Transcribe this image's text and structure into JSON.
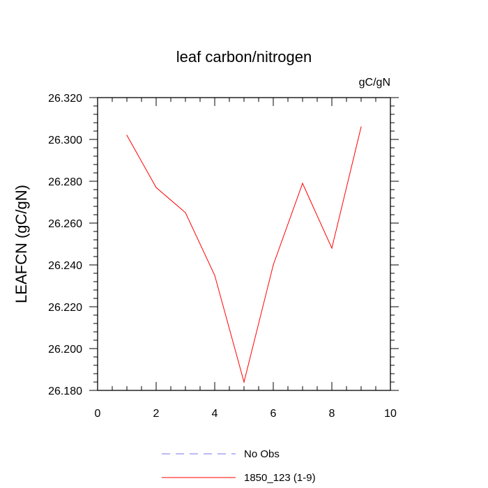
{
  "chart_data": {
    "type": "line",
    "title": "leaf carbon/nitrogen",
    "units": "gC/gN",
    "ylabel": "LEAFCN  (gC/gN)",
    "xlabel": "",
    "xlim": [
      0,
      10
    ],
    "ylim": [
      26.18,
      26.32
    ],
    "xticks": [
      "0",
      "2",
      "4",
      "6",
      "8",
      "10"
    ],
    "yticks": [
      "26.180",
      "26.200",
      "26.220",
      "26.240",
      "26.260",
      "26.280",
      "26.300",
      "26.320"
    ],
    "grid": false,
    "legend_position": "bottom",
    "series": [
      {
        "name": "No Obs",
        "color": "#7777ee",
        "style": "dashed",
        "x": [],
        "y": []
      },
      {
        "name": "1850_123 (1-9)",
        "color": "#ff0000",
        "style": "solid",
        "x": [
          1,
          2,
          3,
          4,
          5,
          6,
          7,
          8,
          9
        ],
        "y": [
          26.302,
          26.277,
          26.265,
          26.235,
          26.184,
          26.24,
          26.279,
          26.248,
          26.306
        ]
      }
    ]
  }
}
